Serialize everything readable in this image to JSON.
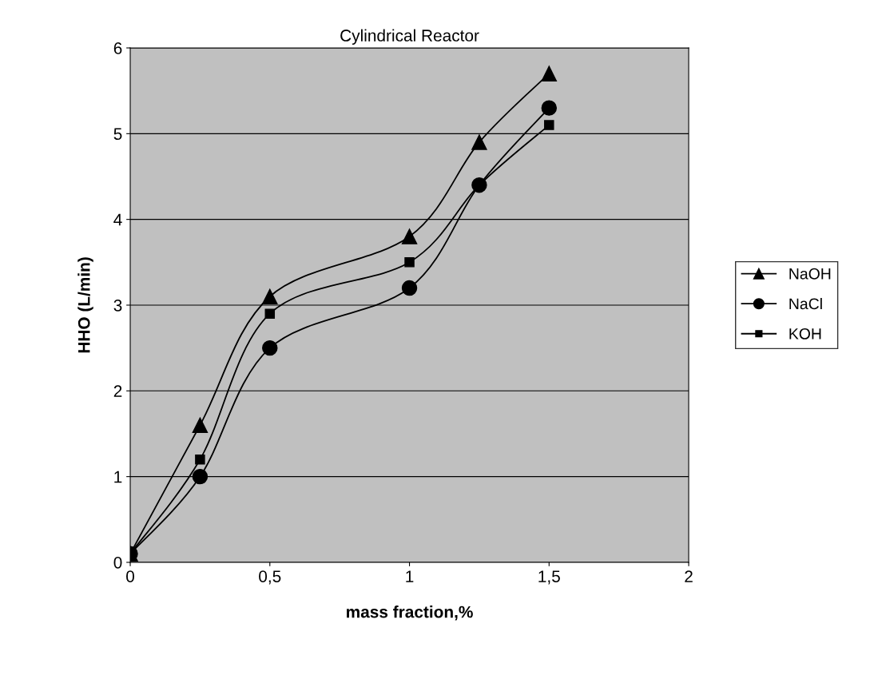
{
  "chart_data": {
    "type": "line",
    "title": "Cylindrical Reactor",
    "xlabel": "mass fraction,%",
    "ylabel": "HHO (L/min)",
    "x": [
      0,
      0.25,
      0.5,
      1,
      1.25,
      1.5
    ],
    "series": [
      {
        "name": "NaOH",
        "color": "#000000",
        "marker": "triangle",
        "values": [
          0.1,
          1.6,
          3.1,
          3.8,
          4.9,
          5.7
        ]
      },
      {
        "name": "NaCl",
        "color": "#000000",
        "marker": "circle",
        "values": [
          0.1,
          1.0,
          2.5,
          3.2,
          4.4,
          5.3
        ]
      },
      {
        "name": "KOH",
        "color": "#000000",
        "marker": "square",
        "values": [
          0.1,
          1.2,
          2.9,
          3.5,
          4.4,
          5.1
        ]
      }
    ],
    "xlim": [
      0,
      2
    ],
    "xticks": [
      0,
      {
        "value": 0.5,
        "label": "0,5"
      },
      1,
      {
        "value": 1.5,
        "label": "1,5"
      },
      2
    ],
    "ylim": [
      0,
      6
    ],
    "yticks": [
      0,
      1,
      2,
      3,
      4,
      5,
      6
    ],
    "grid": "y",
    "legend": "right",
    "line_style": "solid"
  }
}
